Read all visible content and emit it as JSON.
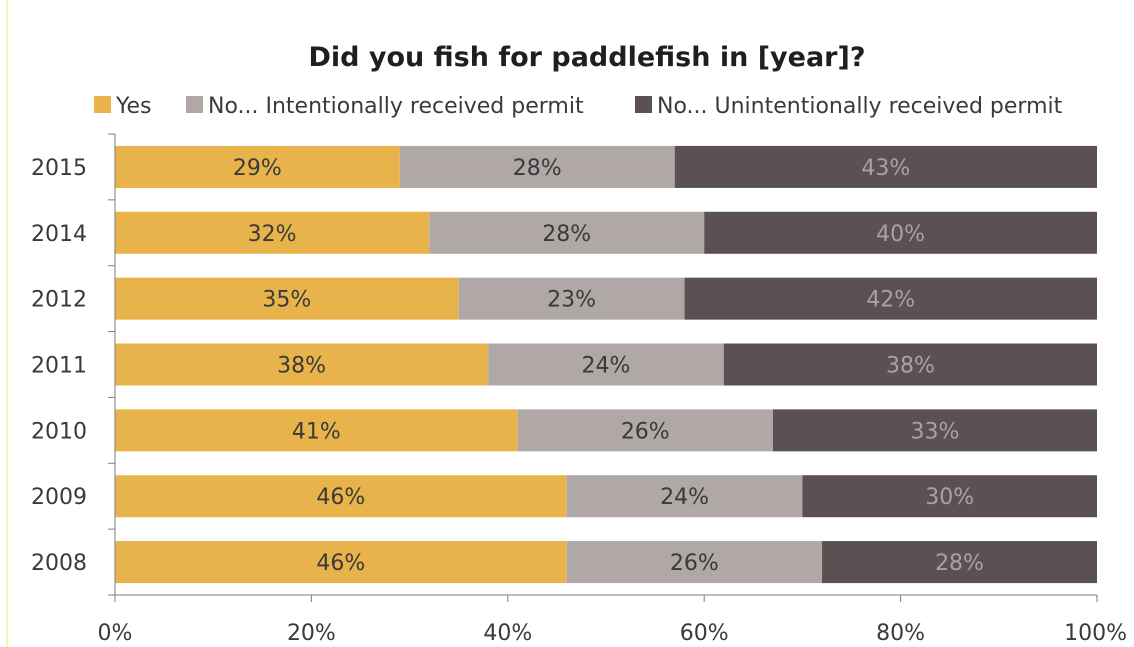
{
  "chart_data": {
    "type": "bar",
    "orientation": "horizontal",
    "stacked": true,
    "title": "Did you fish for paddlefish in [year]?",
    "categories": [
      "2015",
      "2014",
      "2012",
      "2011",
      "2010",
      "2009",
      "2008"
    ],
    "series": [
      {
        "name": "Yes",
        "values": [
          29,
          32,
          35,
          38,
          41,
          46,
          46
        ],
        "color": "#e8b34a",
        "label_color": "#3a3a3a"
      },
      {
        "name": "No... Intentionally received permit",
        "values": [
          28,
          28,
          23,
          24,
          26,
          24,
          26
        ],
        "color": "#b0a7a7",
        "label_color": "#3a3a3a"
      },
      {
        "name": "No... Unintentionally received permit",
        "values": [
          43,
          40,
          42,
          38,
          33,
          30,
          28
        ],
        "color": "#5b5152",
        "label_color": "#aaa2a2"
      }
    ],
    "data_labels": [
      [
        "29%",
        "28%",
        "43%"
      ],
      [
        "32%",
        "28%",
        "40%"
      ],
      [
        "35%",
        "23%",
        "42%"
      ],
      [
        "38%",
        "24%",
        "38%"
      ],
      [
        "41%",
        "26%",
        "33%"
      ],
      [
        "46%",
        "24%",
        "30%"
      ],
      [
        "46%",
        "26%",
        "28%"
      ]
    ],
    "x_ticks": [
      "0%",
      "20%",
      "40%",
      "60%",
      "80%",
      "100%"
    ],
    "xlim": [
      0,
      100
    ],
    "legend_position": "top",
    "grid": false
  }
}
